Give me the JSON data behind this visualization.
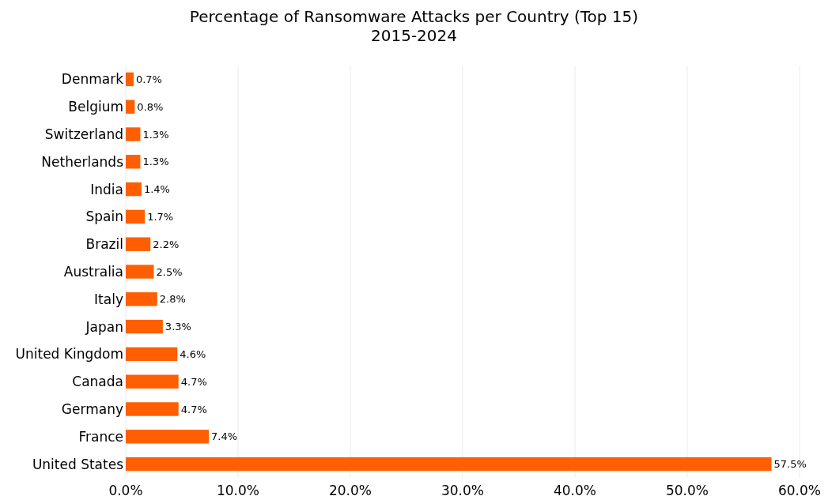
{
  "chart_data": {
    "type": "bar",
    "orientation": "horizontal",
    "title": "Percentage of Ransomware Attacks per Country (Top 15)",
    "subtitle": "2015-2024",
    "categories": [
      "Denmark",
      "Belgium",
      "Switzerland",
      "Netherlands",
      "India",
      "Spain",
      "Brazil",
      "Australia",
      "Italy",
      "Japan",
      "United Kingdom",
      "Canada",
      "Germany",
      "France",
      "United States"
    ],
    "values": [
      0.7,
      0.8,
      1.3,
      1.3,
      1.4,
      1.7,
      2.2,
      2.5,
      2.8,
      3.3,
      4.6,
      4.7,
      4.7,
      7.4,
      57.5
    ],
    "value_labels": [
      "0.7%",
      "0.8%",
      "1.3%",
      "1.3%",
      "1.4%",
      "1.7%",
      "2.2%",
      "2.5%",
      "2.8%",
      "3.3%",
      "4.6%",
      "4.7%",
      "4.7%",
      "7.4%",
      "57.5%"
    ],
    "color": "#ff5f00",
    "xlim": [
      0,
      60
    ],
    "xticks": [
      {
        "value": 0,
        "label": "0.0%"
      },
      {
        "value": 10,
        "label": "10.0%"
      },
      {
        "value": 20,
        "label": "20.0%"
      },
      {
        "value": 30,
        "label": "30.0%"
      },
      {
        "value": 40,
        "label": "40.0%"
      },
      {
        "value": 50,
        "label": "50.0%"
      },
      {
        "value": 60,
        "label": "60.0%"
      }
    ],
    "grid": "x"
  }
}
